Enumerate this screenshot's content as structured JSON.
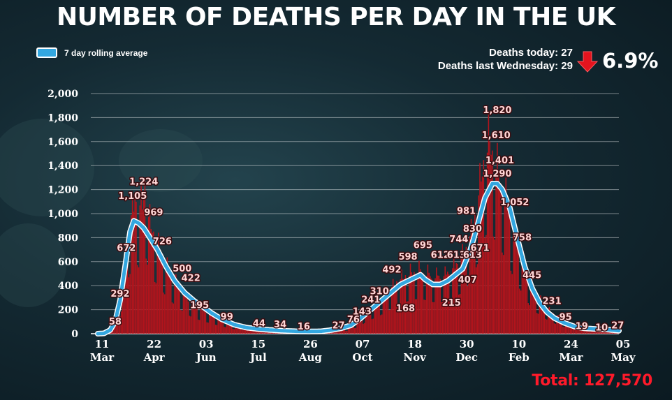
{
  "title": "NUMBER OF DEATHS PER DAY IN THE UK",
  "legend": {
    "label": "7 day rolling average"
  },
  "stats": {
    "deaths_today": "Deaths today: 27",
    "deaths_last_wed": "Deaths last Wednesday: 29",
    "change": "6.9%",
    "total": "Total: 127,570"
  },
  "colors": {
    "bars": "#b3141c",
    "line": "#33a7e0",
    "total": "#ff1a2a",
    "arrow": "#e5141e"
  },
  "chart_data": {
    "type": "bar",
    "title": "NUMBER OF DEATHS PER DAY IN THE UK",
    "xlabel": "",
    "ylabel": "",
    "ylim": [
      0,
      2000
    ],
    "yticks": [
      "0",
      "200",
      "400",
      "600",
      "800",
      "1,000",
      "1,200",
      "1,400",
      "1,600",
      "1,800",
      "2,000"
    ],
    "xticks": [
      {
        "day": 0,
        "line1": "11",
        "line2": "Mar"
      },
      {
        "day": 42,
        "line1": "22",
        "line2": "Apr"
      },
      {
        "day": 84,
        "line1": "03",
        "line2": "Jun"
      },
      {
        "day": 126,
        "line1": "15",
        "line2": "Jul"
      },
      {
        "day": 168,
        "line1": "26",
        "line2": "Aug"
      },
      {
        "day": 210,
        "line1": "07",
        "line2": "Oct"
      },
      {
        "day": 252,
        "line1": "18",
        "line2": "Nov"
      },
      {
        "day": 294,
        "line1": "30",
        "line2": "Dec"
      },
      {
        "day": 336,
        "line1": "10",
        "line2": "Feb"
      },
      {
        "day": 378,
        "line1": "24",
        "line2": "Mar"
      },
      {
        "day": 420,
        "line1": "05",
        "line2": "May"
      }
    ],
    "series_bars": {
      "name": "Deaths per day",
      "anchors": [
        [
          0,
          0
        ],
        [
          6,
          5
        ],
        [
          10,
          25
        ],
        [
          14,
          110
        ],
        [
          18,
          260
        ],
        [
          22,
          560
        ],
        [
          25,
          850
        ],
        [
          28,
          1000
        ],
        [
          30,
          1105
        ],
        [
          33,
          1000
        ],
        [
          36,
          1080
        ],
        [
          38,
          1224
        ],
        [
          41,
          950
        ],
        [
          43,
          900
        ],
        [
          46,
          780
        ],
        [
          49,
          720
        ],
        [
          53,
          620
        ],
        [
          57,
          520
        ],
        [
          62,
          440
        ],
        [
          67,
          360
        ],
        [
          72,
          290
        ],
        [
          78,
          230
        ],
        [
          84,
          195
        ],
        [
          92,
          150
        ],
        [
          100,
          110
        ],
        [
          110,
          70
        ],
        [
          120,
          50
        ],
        [
          130,
          38
        ],
        [
          140,
          30
        ],
        [
          150,
          22
        ],
        [
          160,
          18
        ],
        [
          170,
          14
        ],
        [
          180,
          13
        ],
        [
          188,
          17
        ],
        [
          196,
          28
        ],
        [
          202,
          50
        ],
        [
          208,
          90
        ],
        [
          214,
          150
        ],
        [
          220,
          210
        ],
        [
          226,
          260
        ],
        [
          232,
          320
        ],
        [
          238,
          390
        ],
        [
          244,
          450
        ],
        [
          250,
          490
        ],
        [
          256,
          520
        ],
        [
          262,
          520
        ],
        [
          268,
          480
        ],
        [
          274,
          470
        ],
        [
          280,
          480
        ],
        [
          286,
          530
        ],
        [
          292,
          600
        ],
        [
          298,
          720
        ],
        [
          302,
          850
        ],
        [
          306,
          1050
        ],
        [
          309,
          1300
        ],
        [
          312,
          1450
        ],
        [
          316,
          1600
        ],
        [
          320,
          1420
        ],
        [
          324,
          1300
        ],
        [
          328,
          1150
        ],
        [
          332,
          1000
        ],
        [
          336,
          800
        ],
        [
          340,
          680
        ],
        [
          344,
          560
        ],
        [
          348,
          430
        ],
        [
          352,
          340
        ],
        [
          358,
          260
        ],
        [
          364,
          190
        ],
        [
          370,
          140
        ],
        [
          376,
          100
        ],
        [
          382,
          75
        ],
        [
          388,
          50
        ],
        [
          394,
          35
        ],
        [
          400,
          28
        ],
        [
          410,
          24
        ],
        [
          420,
          20
        ]
      ],
      "wiggle": 0.28
    },
    "series_line": {
      "name": "7 day rolling average",
      "anchors": [
        [
          0,
          0
        ],
        [
          5,
          3
        ],
        [
          10,
          30
        ],
        [
          14,
          100
        ],
        [
          18,
          280
        ],
        [
          22,
          560
        ],
        [
          26,
          850
        ],
        [
          29,
          940
        ],
        [
          33,
          920
        ],
        [
          37,
          880
        ],
        [
          42,
          800
        ],
        [
          48,
          700
        ],
        [
          55,
          560
        ],
        [
          62,
          440
        ],
        [
          70,
          340
        ],
        [
          78,
          270
        ],
        [
          84,
          230
        ],
        [
          92,
          170
        ],
        [
          100,
          120
        ],
        [
          110,
          75
        ],
        [
          120,
          50
        ],
        [
          130,
          38
        ],
        [
          140,
          30
        ],
        [
          150,
          24
        ],
        [
          160,
          20
        ],
        [
          170,
          18
        ],
        [
          180,
          20
        ],
        [
          188,
          30
        ],
        [
          196,
          45
        ],
        [
          204,
          70
        ],
        [
          212,
          130
        ],
        [
          220,
          200
        ],
        [
          228,
          270
        ],
        [
          236,
          340
        ],
        [
          244,
          410
        ],
        [
          250,
          440
        ],
        [
          256,
          470
        ],
        [
          260,
          490
        ],
        [
          264,
          450
        ],
        [
          270,
          410
        ],
        [
          276,
          410
        ],
        [
          282,
          440
        ],
        [
          288,
          490
        ],
        [
          294,
          540
        ],
        [
          300,
          690
        ],
        [
          306,
          900
        ],
        [
          312,
          1130
        ],
        [
          318,
          1250
        ],
        [
          322,
          1250
        ],
        [
          326,
          1200
        ],
        [
          332,
          1050
        ],
        [
          338,
          800
        ],
        [
          344,
          560
        ],
        [
          350,
          380
        ],
        [
          356,
          260
        ],
        [
          362,
          180
        ],
        [
          368,
          130
        ],
        [
          376,
          90
        ],
        [
          384,
          60
        ],
        [
          392,
          45
        ],
        [
          400,
          40
        ],
        [
          410,
          35
        ],
        [
          420,
          25
        ]
      ]
    },
    "annotations": [
      {
        "day": 14,
        "value": 58,
        "label": "58"
      },
      {
        "day": 18,
        "value": 292,
        "label": "292"
      },
      {
        "day": 23,
        "value": 672,
        "label": "672"
      },
      {
        "day": 28,
        "value": 1105,
        "label": "1,105"
      },
      {
        "day": 37,
        "value": 1224,
        "label": "1,224"
      },
      {
        "day": 45,
        "value": 969,
        "label": "969"
      },
      {
        "day": 52,
        "value": 726,
        "label": "726"
      },
      {
        "day": 68,
        "value": 500,
        "label": "500"
      },
      {
        "day": 75,
        "value": 422,
        "label": "422"
      },
      {
        "day": 82,
        "value": 195,
        "label": "195"
      },
      {
        "day": 104,
        "value": 99,
        "label": "99"
      },
      {
        "day": 130,
        "value": 44,
        "label": "44"
      },
      {
        "day": 147,
        "value": 34,
        "label": "34"
      },
      {
        "day": 166,
        "value": 16,
        "label": "16"
      },
      {
        "day": 194,
        "value": 27,
        "label": "27"
      },
      {
        "day": 206,
        "value": 76,
        "label": "76"
      },
      {
        "day": 213,
        "value": 143,
        "label": "143"
      },
      {
        "day": 220,
        "value": 241,
        "label": "241"
      },
      {
        "day": 227,
        "value": 310,
        "label": "310"
      },
      {
        "day": 237,
        "value": 492,
        "label": "492"
      },
      {
        "day": 250,
        "value": 598,
        "label": "598"
      },
      {
        "day": 248,
        "value": 168,
        "label": "168"
      },
      {
        "day": 262,
        "value": 695,
        "label": "695"
      },
      {
        "day": 276,
        "value": 612,
        "label": "612"
      },
      {
        "day": 285,
        "value": 215,
        "label": "215"
      },
      {
        "day": 291,
        "value": 744,
        "label": "744"
      },
      {
        "day": 289,
        "value": 613,
        "label": "613"
      },
      {
        "day": 297,
        "value": 981,
        "label": "981"
      },
      {
        "day": 302,
        "value": 830,
        "label": "830"
      },
      {
        "day": 302,
        "value": 613,
        "label": "613"
      },
      {
        "day": 298,
        "value": 407,
        "label": "407"
      },
      {
        "day": 308,
        "value": 671,
        "label": "671"
      },
      {
        "day": 322,
        "value": 1820,
        "label": "1,820"
      },
      {
        "day": 321,
        "value": 1610,
        "label": "1,610"
      },
      {
        "day": 324,
        "value": 1401,
        "label": "1,401"
      },
      {
        "day": 322,
        "value": 1290,
        "label": "1,290"
      },
      {
        "day": 336,
        "value": 1052,
        "label": "1,052"
      },
      {
        "day": 342,
        "value": 758,
        "label": "758"
      },
      {
        "day": 350,
        "value": 445,
        "label": "445"
      },
      {
        "day": 366,
        "value": 231,
        "label": "231"
      },
      {
        "day": 377,
        "value": 95,
        "label": "95"
      },
      {
        "day": 390,
        "value": 19,
        "label": "19"
      },
      {
        "day": 406,
        "value": 10,
        "label": "10"
      },
      {
        "day": 419,
        "value": 27,
        "label": "27"
      }
    ]
  }
}
